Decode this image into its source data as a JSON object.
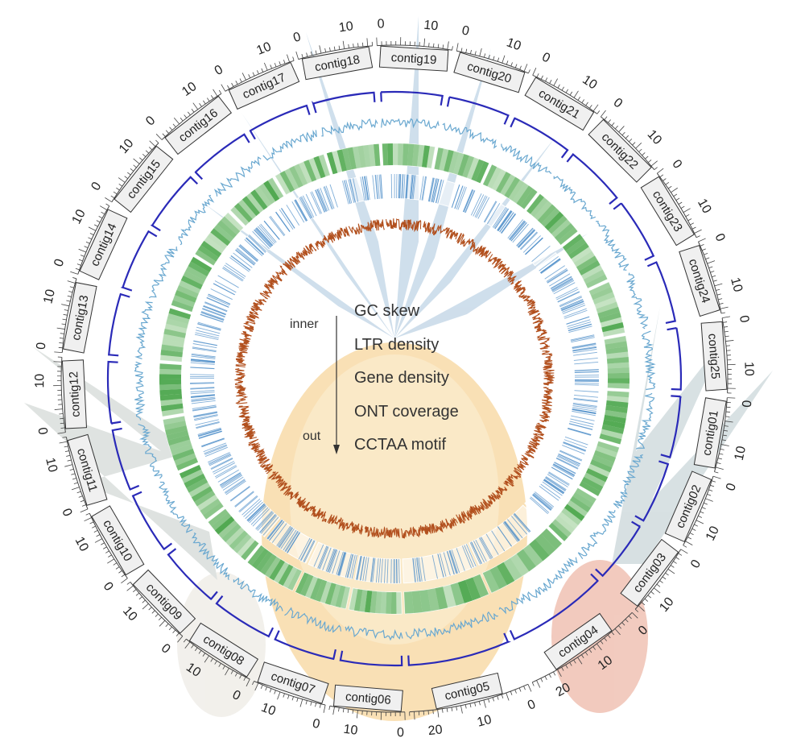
{
  "contigs": [
    {
      "label": "contig19",
      "ticks": [
        0,
        10
      ]
    },
    {
      "label": "contig20",
      "ticks": [
        0,
        10
      ]
    },
    {
      "label": "contig21",
      "ticks": [
        0,
        10
      ]
    },
    {
      "label": "contig22",
      "ticks": [
        0,
        10
      ]
    },
    {
      "label": "contig23",
      "ticks": [
        0,
        10
      ]
    },
    {
      "label": "contig24",
      "ticks": [
        0,
        10
      ]
    },
    {
      "label": "contig25",
      "ticks": [
        0,
        10
      ]
    },
    {
      "label": "contig01",
      "ticks": [
        0,
        10
      ]
    },
    {
      "label": "contig02",
      "ticks": [
        0,
        10
      ]
    },
    {
      "label": "contig03",
      "ticks": [
        0,
        10
      ]
    },
    {
      "label": "contig04",
      "ticks": [
        0,
        10,
        20
      ]
    },
    {
      "label": "contig05",
      "ticks": [
        0,
        10,
        20
      ]
    },
    {
      "label": "contig06",
      "ticks": [
        0,
        10
      ]
    },
    {
      "label": "contig07",
      "ticks": [
        0,
        10
      ]
    },
    {
      "label": "contig08",
      "ticks": [
        0,
        10
      ]
    },
    {
      "label": "contig09",
      "ticks": [
        0,
        10
      ]
    },
    {
      "label": "contig10",
      "ticks": [
        0,
        10
      ]
    },
    {
      "label": "contig11",
      "ticks": [
        0,
        10
      ]
    },
    {
      "label": "contig12",
      "ticks": [
        0,
        10
      ]
    },
    {
      "label": "contig13",
      "ticks": [
        0,
        10
      ]
    },
    {
      "label": "contig14",
      "ticks": [
        0,
        10
      ]
    },
    {
      "label": "contig15",
      "ticks": [
        0,
        10
      ]
    },
    {
      "label": "contig16",
      "ticks": [
        0,
        10
      ]
    },
    {
      "label": "contig17",
      "ticks": [
        0,
        10
      ]
    },
    {
      "label": "contig18",
      "ticks": [
        0,
        10
      ]
    }
  ],
  "legend": {
    "inner": "inner",
    "outer": "out",
    "tracks": [
      "GC skew",
      "LTR density",
      "Gene density",
      "ONT coverage",
      "CCTAA motif"
    ]
  }
}
